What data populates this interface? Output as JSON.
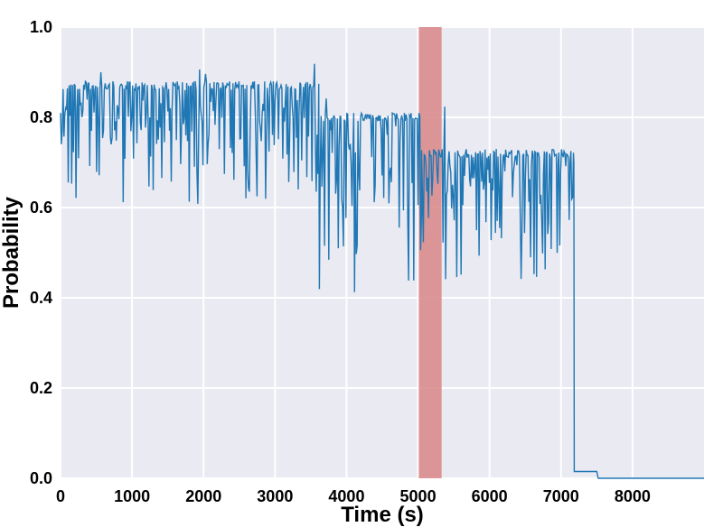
{
  "chart_data": {
    "type": "line",
    "title": "",
    "xlabel": "Time (s)",
    "ylabel": "Probability",
    "xlim": [
      0,
      9000
    ],
    "ylim": [
      0,
      1.0
    ],
    "xticks": [
      0,
      1000,
      2000,
      3000,
      4000,
      5000,
      6000,
      7000,
      8000
    ],
    "yticks": [
      0.0,
      0.2,
      0.4,
      0.6,
      0.8,
      1.0
    ],
    "xtick_labels": [
      "0",
      "1000",
      "2000",
      "3000",
      "4000",
      "5000",
      "6000",
      "7000",
      "8000"
    ],
    "ytick_labels": [
      "0.0",
      "0.2",
      "0.4",
      "0.6",
      "0.8",
      "1.0"
    ],
    "grid": true,
    "background": "#eaeaf2",
    "highlight_region": {
      "x_start": 5010,
      "x_end": 5330,
      "color": "#d98c8c"
    },
    "series": [
      {
        "color": "#1f77b4",
        "segments": [
          {
            "x_start": 0,
            "x_end": 3620,
            "baseline": 0.84,
            "top": 0.88,
            "mid": 0.74,
            "low": 0.64,
            "min": 0.6,
            "max": 0.92
          },
          {
            "x_start": 3620,
            "x_end": 5050,
            "baseline": 0.78,
            "top": 0.81,
            "mid": 0.64,
            "low": 0.47,
            "min": 0.39,
            "max": 0.86
          },
          {
            "x_start": 5050,
            "x_end": 7180,
            "baseline": 0.7,
            "top": 0.73,
            "mid": 0.62,
            "low": 0.47,
            "min": 0.44,
            "max": 0.85
          }
        ],
        "tail": [
          {
            "x": 7180,
            "y": 0.7
          },
          {
            "x": 7185,
            "y": 0.015
          },
          {
            "x": 7500,
            "y": 0.015
          },
          {
            "x": 7520,
            "y": 0.0
          },
          {
            "x": 9000,
            "y": 0.0
          }
        ]
      }
    ]
  }
}
